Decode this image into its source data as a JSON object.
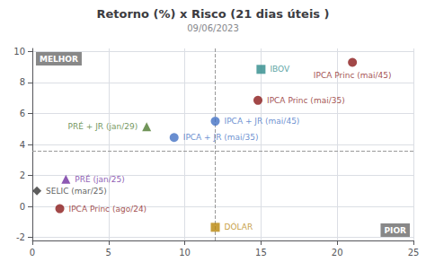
{
  "chart_data": {
    "type": "scatter",
    "title": "Retorno (%) x Risco (21 dias úteis )",
    "subtitle": "09/06/2023",
    "xlim": [
      0,
      25
    ],
    "ylim": [
      -2.2,
      10.2
    ],
    "xticks": [
      0,
      5,
      10,
      15,
      20,
      25
    ],
    "yticks": [
      -2,
      0,
      2,
      4,
      6,
      8,
      10
    ],
    "grid": true,
    "legend": false,
    "series": [
      {
        "name": "IBOV",
        "color": "#2e8b8b",
        "marker": "square",
        "x": [
          15.0
        ],
        "values": [
          8.85
        ]
      },
      {
        "name": "IPCA Princ (mai/45)",
        "color": "#8b1a1a",
        "marker": "circle",
        "x": [
          21.0
        ],
        "values": [
          9.3
        ]
      },
      {
        "name": "IPCA Princ (mai/35)",
        "color": "#8b1a1a",
        "marker": "circle",
        "x": [
          14.8
        ],
        "values": [
          6.85
        ]
      },
      {
        "name": "IPCA + JR (mai/45)",
        "color": "#4472c4",
        "marker": "circle",
        "x": [
          12.0
        ],
        "values": [
          5.5
        ]
      },
      {
        "name": "IPCA + JR (mai/35)",
        "color": "#4472c4",
        "marker": "circle",
        "x": [
          9.3
        ],
        "values": [
          4.45
        ]
      },
      {
        "name": "PRÉ + JR (jan/29)",
        "color": "#4e7a2f",
        "marker": "triangle",
        "x": [
          7.5
        ],
        "values": [
          5.15
        ]
      },
      {
        "name": "PRÉ (jan/25)",
        "color": "#7030a0",
        "marker": "triangle",
        "x": [
          2.2
        ],
        "values": [
          1.75
        ]
      },
      {
        "name": "SELIC (mar/25)",
        "color": "#333333",
        "marker": "diamond",
        "x": [
          0.3
        ],
        "values": [
          1.0
        ]
      },
      {
        "name": "IPCA Princ (ago/24)",
        "color": "#8b1a1a",
        "marker": "circle",
        "x": [
          1.8
        ],
        "values": [
          -0.15
        ]
      },
      {
        "name": "DÓLAR",
        "color": "#b8860b",
        "marker": "square",
        "x": [
          12.0
        ],
        "values": [
          -1.35
        ]
      }
    ],
    "reference_lines": [
      {
        "x": 12.0,
        "color": "#999999",
        "line_style": "dashed"
      },
      {
        "y": 3.6,
        "color": "#999999",
        "line_style": "dashed"
      }
    ],
    "annotations": [
      {
        "text": "MELHOR",
        "color": "#888888"
      },
      {
        "text": "PIOR",
        "color": "#888888"
      }
    ]
  }
}
